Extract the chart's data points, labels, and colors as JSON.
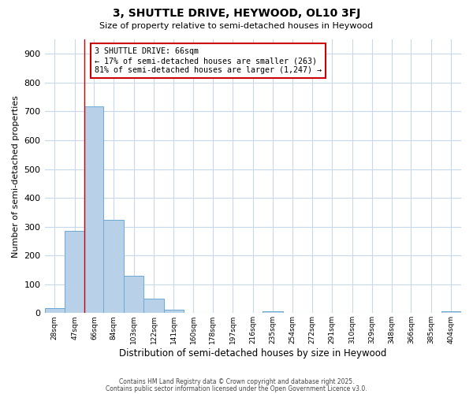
{
  "title": "3, SHUTTLE DRIVE, HEYWOOD, OL10 3FJ",
  "subtitle": "Size of property relative to semi-detached houses in Heywood",
  "xlabel": "Distribution of semi-detached houses by size in Heywood",
  "ylabel": "Number of semi-detached properties",
  "bar_labels": [
    "28sqm",
    "47sqm",
    "66sqm",
    "84sqm",
    "103sqm",
    "122sqm",
    "141sqm",
    "160sqm",
    "178sqm",
    "197sqm",
    "216sqm",
    "235sqm",
    "254sqm",
    "272sqm",
    "291sqm",
    "310sqm",
    "329sqm",
    "348sqm",
    "366sqm",
    "385sqm",
    "404sqm"
  ],
  "bar_values": [
    18,
    285,
    718,
    323,
    130,
    50,
    12,
    0,
    0,
    0,
    0,
    5,
    0,
    0,
    0,
    0,
    0,
    0,
    0,
    0,
    5
  ],
  "bin_edges": [
    28,
    47,
    66,
    84,
    103,
    122,
    141,
    160,
    178,
    197,
    216,
    235,
    254,
    272,
    291,
    310,
    329,
    348,
    366,
    385,
    404
  ],
  "bar_color": "#b8d0e8",
  "bar_edge_color": "#6aaad4",
  "vline_x": 66,
  "vline_color": "#cc0000",
  "annotation_title": "3 SHUTTLE DRIVE: 66sqm",
  "annotation_line1": "← 17% of semi-detached houses are smaller (263)",
  "annotation_line2": "81% of semi-detached houses are larger (1,247) →",
  "annotation_box_color": "#cc0000",
  "ylim": [
    0,
    950
  ],
  "yticks": [
    0,
    100,
    200,
    300,
    400,
    500,
    600,
    700,
    800,
    900
  ],
  "footer1": "Contains HM Land Registry data © Crown copyright and database right 2025.",
  "footer2": "Contains public sector information licensed under the Open Government Licence v3.0.",
  "background_color": "#ffffff",
  "grid_color": "#c8d8ec"
}
